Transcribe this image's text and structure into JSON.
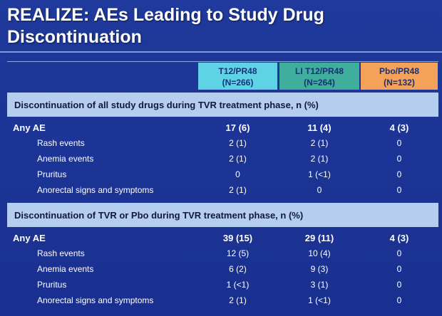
{
  "title": "REALIZE: AEs Leading to Study Drug Discontinuation",
  "table": {
    "columns": [
      {
        "name": "T12/PR48",
        "n": "(N=266)"
      },
      {
        "name": "LI T12/PR48",
        "n": "(N=264)"
      },
      {
        "name": "Pbo/PR48",
        "n": "(N=132)"
      }
    ],
    "sections": [
      {
        "heading": "Discontinuation of all study drugs during TVR treatment phase, n (%)",
        "rows": [
          {
            "label": "Any AE",
            "values": [
              "17 (6)",
              "11 (4)",
              "4 (3)"
            ]
          },
          {
            "label": "Rash events",
            "values": [
              "2 (1)",
              "2 (1)",
              "0"
            ]
          },
          {
            "label": "Anemia events",
            "values": [
              "2 (1)",
              "2 (1)",
              "0"
            ]
          },
          {
            "label": "Pruritus",
            "values": [
              "0",
              "1 (<1)",
              "0"
            ]
          },
          {
            "label": "Anorectal signs and symptoms",
            "values": [
              "2 (1)",
              "0",
              "0"
            ]
          }
        ]
      },
      {
        "heading": "Discontinuation of TVR or Pbo during TVR treatment phase, n (%)",
        "rows": [
          {
            "label": "Any AE",
            "values": [
              "39 (15)",
              "29 (11)",
              "4 (3)"
            ]
          },
          {
            "label": "Rash events",
            "values": [
              "12 (5)",
              "10 (4)",
              "0"
            ]
          },
          {
            "label": "Anemia events",
            "values": [
              "6 (2)",
              "9 (3)",
              "0"
            ]
          },
          {
            "label": "Pruritus",
            "values": [
              "1 (<1)",
              "3 (1)",
              "0"
            ]
          },
          {
            "label": "Anorectal signs and symptoms",
            "values": [
              "2 (1)",
              "1 (<1)",
              "0"
            ]
          }
        ]
      }
    ]
  }
}
